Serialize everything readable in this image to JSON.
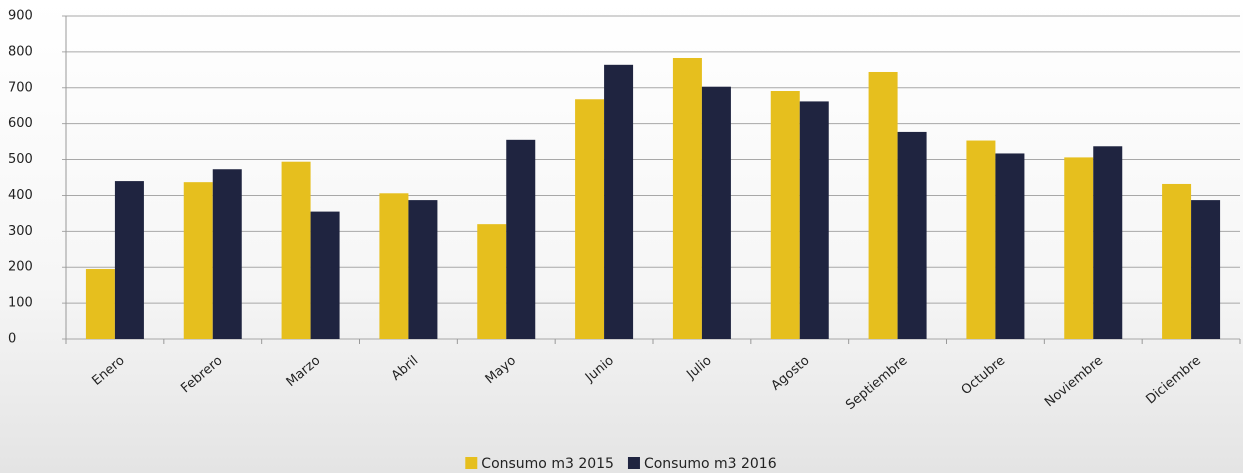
{
  "chart_data": {
    "type": "bar",
    "categories": [
      "Enero",
      "Febrero",
      "Marzo",
      "Abril",
      "Mayo",
      "Junio",
      "Julio",
      "Agosto",
      "Septiembre",
      "Octubre",
      "Noviembre",
      "Diciembre"
    ],
    "series": [
      {
        "name": "Consumo m3 2015",
        "color": "#e6bf1e",
        "values": [
          195,
          437,
          494,
          406,
          320,
          668,
          783,
          691,
          744,
          553,
          506,
          432
        ]
      },
      {
        "name": "Consumo m3 2016",
        "color": "#1f2440",
        "values": [
          440,
          473,
          355,
          387,
          555,
          764,
          703,
          662,
          577,
          517,
          537,
          387
        ]
      }
    ],
    "ylim": [
      0,
      900
    ],
    "yticks": [
      0,
      100,
      200,
      300,
      400,
      500,
      600,
      700,
      800,
      900
    ],
    "grid": true,
    "legend": "bottom"
  }
}
